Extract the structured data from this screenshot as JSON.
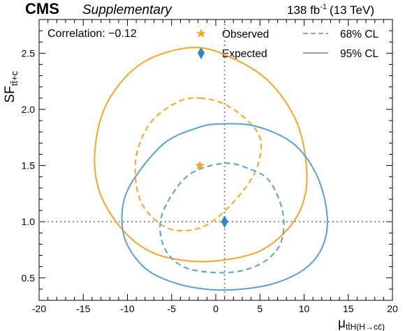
{
  "header": {
    "experiment": "CMS",
    "status": "Supplementary",
    "lumi_value": "138 fb",
    "lumi_exponent": "-1",
    "energy": "(13 TeV)"
  },
  "annotation": "Correlation: −0.12",
  "legend": {
    "observed": "Observed",
    "expected": "Expected",
    "cl68": "68% CL",
    "cl95": "95% CL"
  },
  "colors": {
    "observed": "#f5a623",
    "expected": "#5aa0d6"
  },
  "chart_data": {
    "type": "scatter",
    "xlabel": "μ ttH(H→cc̅)",
    "ylabel": "SF tt̅+c",
    "xlim": [
      -20,
      20
    ],
    "ylim": [
      0.3,
      2.8
    ],
    "x_ticks": [
      -20,
      -15,
      -10,
      -5,
      0,
      5,
      10,
      15,
      20
    ],
    "y_ticks": [
      0.5,
      1.0,
      1.5,
      2.0,
      2.5
    ],
    "x_tick_labels": [
      "-20",
      "-15",
      "-10",
      "-5",
      "0",
      "5",
      "10",
      "15",
      "20"
    ],
    "y_tick_labels": [
      "0.5",
      "1.0",
      "1.5",
      "2.0",
      "2.5"
    ],
    "reference_lines": {
      "x": 1.0,
      "y": 1.0
    },
    "best_fit": {
      "observed": {
        "x": -1.8,
        "y": 1.5
      },
      "expected": {
        "x": 1.0,
        "y": 1.0
      }
    },
    "contours": [
      {
        "name": "Observed 68% CL",
        "style": "dashed",
        "x": [
          -1.8,
          0.9,
          3.6,
          5.1,
          4.5,
          2.3,
          -0.8,
          -3.7,
          -6.1,
          -8.3,
          -9.1,
          -8.8,
          -7.2,
          -4.2,
          -1.8
        ],
        "y": [
          2.1,
          2.05,
          1.9,
          1.72,
          1.45,
          1.2,
          0.98,
          0.92,
          0.97,
          1.15,
          1.4,
          1.65,
          1.9,
          2.07,
          2.1
        ]
      },
      {
        "name": "Observed 95% CL",
        "style": "solid",
        "x": [
          -2.7,
          1.5,
          6.0,
          9.2,
          10.3,
          9.8,
          8.0,
          5.0,
          1.0,
          -3.0,
          -7.3,
          -10.8,
          -13.3,
          -13.6,
          -12.0,
          -8.2,
          -2.7
        ],
        "y": [
          2.55,
          2.47,
          2.25,
          1.88,
          1.45,
          1.15,
          0.92,
          0.74,
          0.66,
          0.65,
          0.73,
          0.95,
          1.3,
          1.7,
          2.1,
          2.42,
          2.55
        ]
      },
      {
        "name": "Expected 68% CL",
        "style": "dashed",
        "x": [
          1.0,
          3.8,
          6.1,
          7.6,
          7.4,
          5.6,
          2.7,
          -0.6,
          -3.7,
          -5.7,
          -6.3,
          -5.2,
          -2.8,
          1.0
        ],
        "y": [
          1.52,
          1.47,
          1.36,
          1.08,
          0.82,
          0.65,
          0.56,
          0.55,
          0.6,
          0.75,
          0.98,
          1.21,
          1.43,
          1.52
        ]
      },
      {
        "name": "Expected 95% CL",
        "style": "solid",
        "x": [
          0.3,
          4.5,
          8.7,
          11.4,
          12.6,
          12.2,
          10.4,
          7.0,
          3.0,
          -1.2,
          -5.2,
          -8.2,
          -10.3,
          -10.5,
          -9.1,
          -5.8,
          -2.3,
          0.3
        ],
        "y": [
          1.87,
          1.85,
          1.7,
          1.42,
          1.07,
          0.8,
          0.6,
          0.46,
          0.4,
          0.4,
          0.47,
          0.6,
          0.85,
          1.15,
          1.4,
          1.7,
          1.83,
          1.87
        ]
      }
    ]
  }
}
